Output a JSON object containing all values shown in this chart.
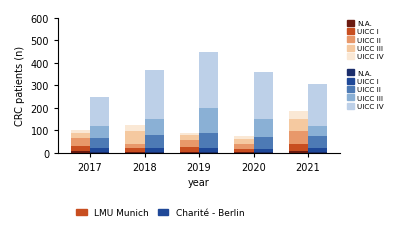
{
  "years": [
    "2017",
    "2018",
    "2019",
    "2020",
    "2021"
  ],
  "lmu_data": {
    "2017": [
      10,
      20,
      35,
      25,
      10
    ],
    "2018": [
      5,
      15,
      20,
      55,
      30
    ],
    "2019": [
      5,
      20,
      30,
      25,
      10
    ],
    "2020": [
      5,
      10,
      25,
      20,
      15
    ],
    "2021": [
      10,
      30,
      55,
      55,
      35
    ]
  },
  "charite_data": {
    "2017": [
      5,
      15,
      45,
      55,
      130
    ],
    "2018": [
      5,
      15,
      60,
      70,
      220
    ],
    "2019": [
      5,
      15,
      70,
      110,
      250
    ],
    "2020": [
      5,
      10,
      55,
      80,
      210
    ],
    "2021": [
      5,
      15,
      55,
      45,
      185
    ]
  },
  "lmu_colors": [
    "#6b1a10",
    "#c84e20",
    "#e8986a",
    "#f5c9a0",
    "#fae8d5"
  ],
  "charite_colors": [
    "#1a2d6b",
    "#1f4898",
    "#4d7ab5",
    "#8ab0d5",
    "#bdd0e8"
  ],
  "ylim": [
    0,
    600
  ],
  "yticks": [
    0,
    100,
    200,
    300,
    400,
    500,
    600
  ],
  "ylabel": "CRC patients (n)",
  "xlabel": "year",
  "bar_width": 0.35,
  "legend_labels": [
    "N.A.",
    "UICC I",
    "UICC II",
    "UICC III",
    "UICC IV"
  ],
  "bottom_legend": [
    "LMU Munich",
    "Charité - Berlin"
  ]
}
